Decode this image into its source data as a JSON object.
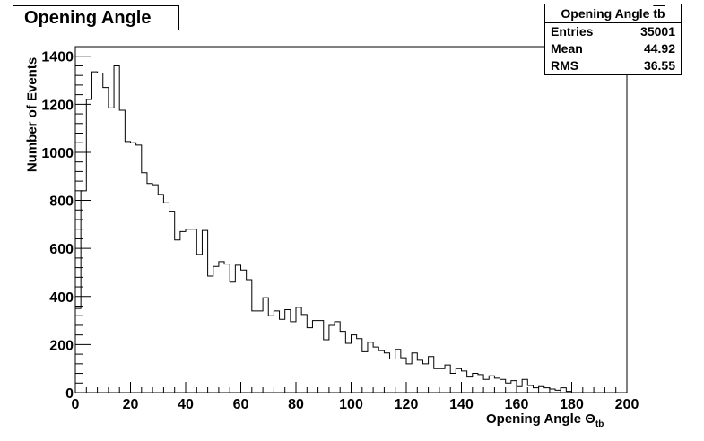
{
  "title": "Opening Angle",
  "stats": {
    "name_main": "Opening Angle ",
    "name_over": "tb",
    "rows": [
      {
        "label": "Entries",
        "value": "35001"
      },
      {
        "label": "Mean",
        "value": "44.92"
      },
      {
        "label": "RMS",
        "value": "36.55"
      }
    ]
  },
  "chart_data": {
    "type": "bar",
    "title": "Opening Angle",
    "xlabel_main": "Opening Angle Θ",
    "xlabel_sub": "tb",
    "ylabel": "Number of Events",
    "xlim": [
      0,
      200
    ],
    "ylim": [
      0,
      1440
    ],
    "bin_width": 2,
    "x_ticks": [
      0,
      20,
      40,
      60,
      80,
      100,
      120,
      140,
      160,
      180,
      200
    ],
    "y_ticks": [
      0,
      200,
      400,
      600,
      800,
      1000,
      1200,
      1400
    ],
    "values": [
      350,
      840,
      1220,
      1335,
      1330,
      1270,
      1185,
      1360,
      1175,
      1045,
      1040,
      1030,
      915,
      870,
      865,
      825,
      790,
      755,
      635,
      670,
      680,
      680,
      575,
      675,
      485,
      525,
      545,
      535,
      460,
      530,
      510,
      470,
      340,
      340,
      395,
      320,
      340,
      305,
      345,
      295,
      355,
      325,
      270,
      300,
      300,
      220,
      280,
      295,
      255,
      205,
      240,
      225,
      170,
      210,
      190,
      175,
      165,
      140,
      180,
      145,
      120,
      165,
      135,
      120,
      150,
      100,
      100,
      115,
      80,
      100,
      90,
      65,
      80,
      75,
      55,
      70,
      60,
      55,
      40,
      50,
      25,
      55,
      30,
      20,
      25,
      20,
      15,
      10,
      20,
      5,
      0,
      0,
      0,
      0,
      0,
      0,
      0,
      0,
      0,
      0
    ],
    "legend": "none",
    "grid": false
  }
}
